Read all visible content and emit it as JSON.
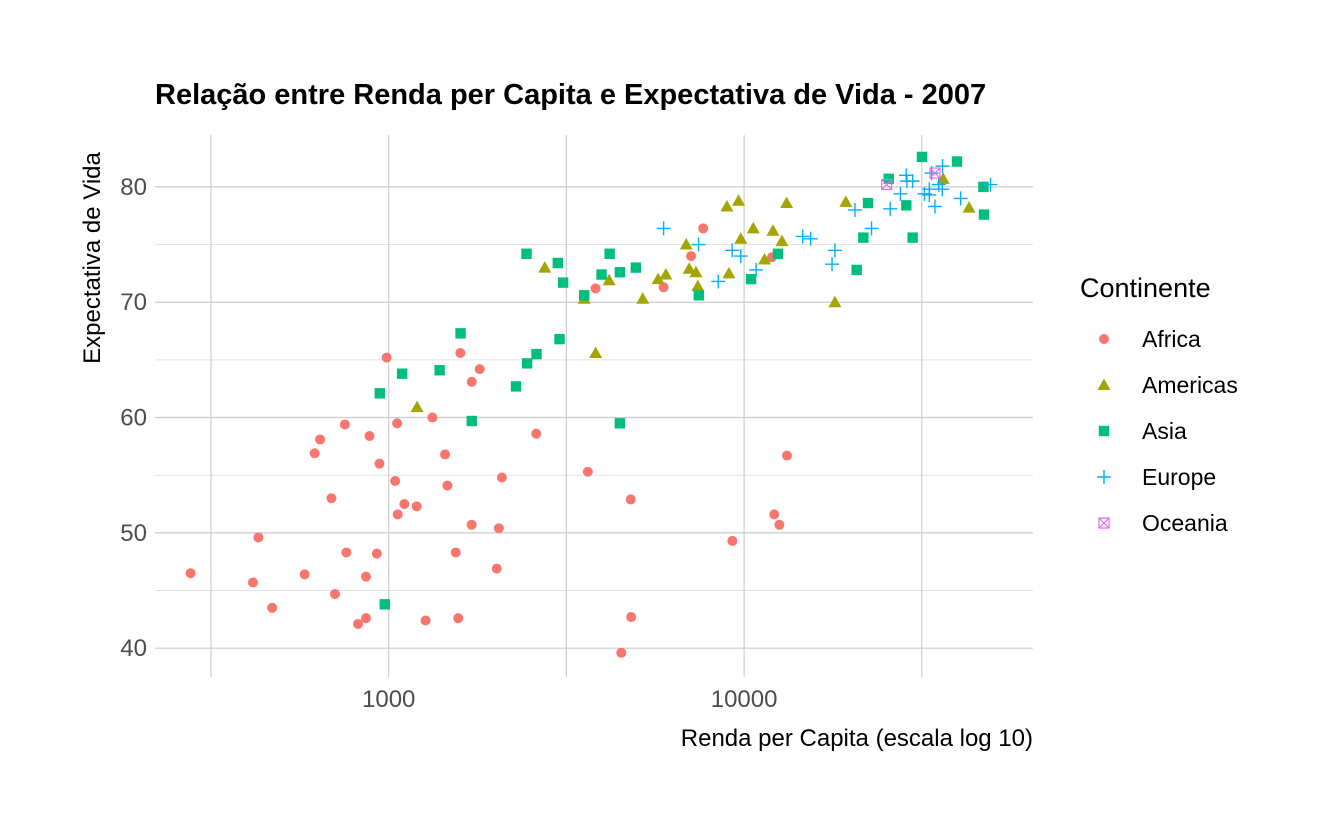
{
  "chart_data": {
    "type": "scatter",
    "title": "Relação entre Renda per Capita e Expectativa de Vida - 2007",
    "xlabel": "Renda per Capita (escala log 10)",
    "ylabel": "Expectativa de Vida",
    "x_scale": "log10",
    "xlim": [
      220,
      65000
    ],
    "ylim": [
      37.5,
      84.5
    ],
    "x_ticks": [
      1000,
      10000
    ],
    "x_tick_labels": [
      "1000",
      "10000"
    ],
    "y_ticks": [
      40,
      50,
      60,
      70,
      80
    ],
    "y_tick_labels": [
      "40",
      "50",
      "60",
      "70",
      "80"
    ],
    "grid": true,
    "legend": {
      "title": "Continente",
      "position": "right"
    },
    "series": [
      {
        "name": "Africa",
        "color": "#F8766D",
        "marker": "circle",
        "points": [
          [
            277,
            46.5
          ],
          [
            415,
            45.7
          ],
          [
            430,
            49.6
          ],
          [
            470,
            43.5
          ],
          [
            580,
            46.4
          ],
          [
            619,
            56.9
          ],
          [
            641,
            58.1
          ],
          [
            690,
            53.0
          ],
          [
            706,
            44.7
          ],
          [
            753,
            59.4
          ],
          [
            760,
            48.3
          ],
          [
            820,
            42.1
          ],
          [
            863,
            42.6
          ],
          [
            863,
            46.2
          ],
          [
            883,
            58.4
          ],
          [
            926,
            48.2
          ],
          [
            942,
            56.0
          ],
          [
            987,
            65.2
          ],
          [
            1043,
            54.5
          ],
          [
            1056,
            59.5
          ],
          [
            1060,
            51.6
          ],
          [
            1107,
            52.5
          ],
          [
            1199,
            52.3
          ],
          [
            1270,
            42.4
          ],
          [
            1327,
            60.0
          ],
          [
            1441,
            56.8
          ],
          [
            1463,
            54.1
          ],
          [
            1544,
            48.3
          ],
          [
            1569,
            42.6
          ],
          [
            1591,
            65.6
          ],
          [
            1713,
            63.1
          ],
          [
            1712,
            50.7
          ],
          [
            1803,
            64.2
          ],
          [
            2014,
            46.9
          ],
          [
            2042,
            50.4
          ],
          [
            2082,
            54.8
          ],
          [
            2602,
            58.6
          ],
          [
            3633,
            55.3
          ],
          [
            3820,
            71.2
          ],
          [
            4513,
            39.6
          ],
          [
            4797,
            52.9
          ],
          [
            4811,
            42.7
          ],
          [
            5937,
            71.3
          ],
          [
            7093,
            74.0
          ],
          [
            7670,
            76.4
          ],
          [
            9270,
            49.3
          ],
          [
            11978,
            73.9
          ],
          [
            12154,
            51.6
          ],
          [
            12570,
            50.7
          ],
          [
            13206,
            56.7
          ]
        ]
      },
      {
        "name": "Americas",
        "color": "#A3A500",
        "marker": "triangle",
        "points": [
          [
            1202,
            60.9
          ],
          [
            2749,
            73.0
          ],
          [
            3548,
            70.3
          ],
          [
            3822,
            65.6
          ],
          [
            4172,
            71.9
          ],
          [
            5186,
            70.3
          ],
          [
            5728,
            72.0
          ],
          [
            6025,
            72.4
          ],
          [
            6873,
            75.0
          ],
          [
            7006,
            72.9
          ],
          [
            7320,
            72.6
          ],
          [
            7408,
            71.4
          ],
          [
            8948,
            78.3
          ],
          [
            9065,
            72.5
          ],
          [
            9645,
            78.8
          ],
          [
            9787,
            75.5
          ],
          [
            10611,
            76.4
          ],
          [
            11415,
            73.7
          ],
          [
            12057,
            76.2
          ],
          [
            12779,
            75.3
          ],
          [
            13172,
            78.6
          ],
          [
            18009,
            70.0
          ],
          [
            19329,
            78.7
          ],
          [
            36319,
            80.7
          ],
          [
            42952,
            78.2
          ]
        ]
      },
      {
        "name": "Asia",
        "color": "#00BF7D",
        "marker": "square",
        "points": [
          [
            944,
            62.1
          ],
          [
            975,
            43.8
          ],
          [
            1091,
            63.8
          ],
          [
            1391,
            64.1
          ],
          [
            1593,
            67.3
          ],
          [
            1713,
            59.7
          ],
          [
            2281,
            62.7
          ],
          [
            2452,
            64.7
          ],
          [
            2442,
            74.2
          ],
          [
            2606,
            65.5
          ],
          [
            2991,
            73.4
          ],
          [
            3025,
            66.8
          ],
          [
            3096,
            71.7
          ],
          [
            3549,
            70.6
          ],
          [
            3971,
            72.4
          ],
          [
            4185,
            74.2
          ],
          [
            4472,
            59.5
          ],
          [
            4471,
            72.6
          ],
          [
            4959,
            73.0
          ],
          [
            7458,
            70.6
          ],
          [
            10461,
            72.0
          ],
          [
            12452,
            74.2
          ],
          [
            20739,
            72.8
          ],
          [
            21655,
            75.6
          ],
          [
            22316,
            78.6
          ],
          [
            25523,
            80.7
          ],
          [
            28604,
            78.4
          ],
          [
            29796,
            75.6
          ],
          [
            31656,
            82.6
          ],
          [
            39725,
            82.2
          ],
          [
            47143,
            80.0
          ],
          [
            47307,
            77.6
          ]
        ]
      },
      {
        "name": "Europe",
        "color": "#00B0F6",
        "marker": "plus",
        "points": [
          [
            5937,
            76.4
          ],
          [
            7446,
            75.0
          ],
          [
            8458,
            71.8
          ],
          [
            9253,
            74.5
          ],
          [
            9787,
            74.0
          ],
          [
            10808,
            72.8
          ],
          [
            14619,
            75.7
          ],
          [
            15390,
            75.5
          ],
          [
            17676,
            73.3
          ],
          [
            18009,
            74.5
          ],
          [
            20510,
            78.0
          ],
          [
            22833,
            76.4
          ],
          [
            25768,
            78.1
          ],
          [
            27538,
            79.4
          ],
          [
            28570,
            81.0
          ],
          [
            28718,
            80.5
          ],
          [
            29796,
            80.5
          ],
          [
            32170,
            79.4
          ],
          [
            33207,
            79.3
          ],
          [
            33203,
            79.8
          ],
          [
            33692,
            81.2
          ],
          [
            34435,
            78.3
          ],
          [
            35278,
            80.2
          ],
          [
            36126,
            79.8
          ],
          [
            36181,
            81.8
          ],
          [
            40676,
            79.0
          ],
          [
            49357,
            80.2
          ]
        ]
      },
      {
        "name": "Oceania",
        "color": "#E76BF3",
        "marker": "square-x",
        "points": [
          [
            25185,
            80.2
          ],
          [
            34435,
            81.2
          ]
        ]
      }
    ]
  }
}
